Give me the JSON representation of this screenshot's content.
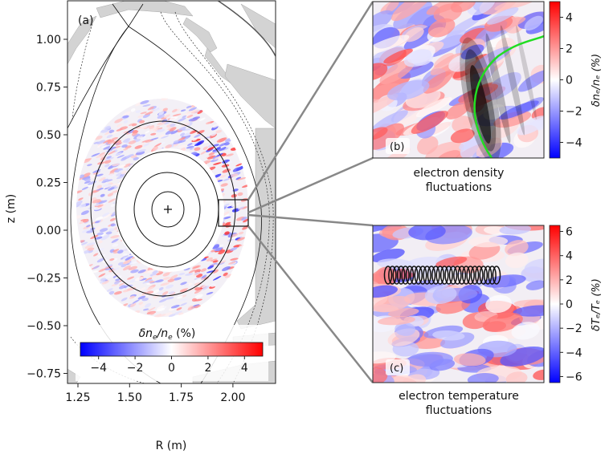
{
  "chart_data": [
    {
      "type": "heatmap",
      "panel_label": "(a)",
      "xlabel": "R (m)",
      "ylabel": "z (m)",
      "xlim": [
        1.22,
        2.18
      ],
      "ylim": [
        -0.8,
        1.2
      ],
      "xticks": [
        "1.25",
        "1.50",
        "1.75",
        "2.00"
      ],
      "yticks": [
        "1.00",
        "0.75",
        "0.50",
        "0.25",
        "0.00",
        "−0.25",
        "−0.50",
        "−0.75"
      ],
      "colorbar": {
        "label_main": "δn",
        "label_sub1": "e",
        "label_mid": "/n",
        "label_sub2": "e",
        "label_unit": " (%)",
        "orientation": "horizontal",
        "range": [
          -5,
          5
        ],
        "ticks": [
          "−4",
          "−2",
          "0",
          "2",
          "4"
        ],
        "colormap": "bwr"
      },
      "magnetic_axis": {
        "R": 1.68,
        "z": 0.11
      },
      "zoom_box": {
        "R": [
          1.93,
          2.06
        ],
        "z": [
          0.02,
          0.16
        ]
      }
    },
    {
      "type": "heatmap",
      "panel_label": "(b)",
      "caption_line1": "electron density",
      "caption_line2": "fluctuations",
      "colorbar": {
        "label": "δnₑ/nₑ (%)",
        "orientation": "vertical",
        "range": [
          -5,
          5
        ],
        "ticks": [
          "4",
          "2",
          "0",
          "−2",
          "−4"
        ],
        "colormap": "bwr"
      },
      "overlay": "green curve with gray beam pattern",
      "overlay_color": "#22dd22"
    },
    {
      "type": "heatmap",
      "panel_label": "(c)",
      "caption_line1": "electron temperature",
      "caption_line2": "fluctuations",
      "colorbar": {
        "label": "δTₑ/Tₑ (%)",
        "orientation": "vertical",
        "range": [
          -6.5,
          6.5
        ],
        "ticks": [
          "6",
          "4",
          "2",
          "0",
          "−2",
          "−4",
          "−6"
        ],
        "colormap": "bwr"
      },
      "overlay": "row of black ellipses"
    }
  ],
  "colors": {
    "negative": "#0000ff",
    "zero": "#ffffff",
    "positive": "#ff0000",
    "wall": "#d3d3d3",
    "connector": "#888888"
  }
}
